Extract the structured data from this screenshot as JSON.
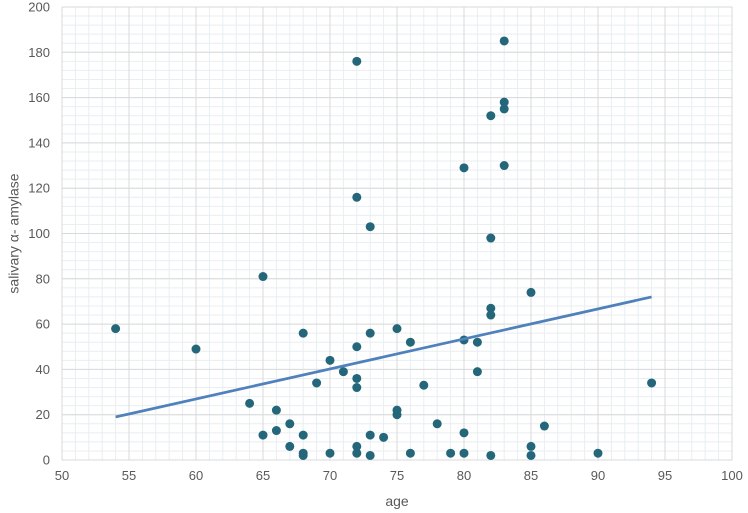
{
  "chart_data": {
    "type": "scatter",
    "title": "",
    "xlabel": "age",
    "ylabel": "salivary α- amylase",
    "xlim": [
      50,
      100
    ],
    "ylim": [
      0,
      200
    ],
    "x_major_step": 5,
    "y_major_step": 20,
    "x_ticks": [
      "50",
      "55",
      "60",
      "65",
      "70",
      "75",
      "80",
      "85",
      "90",
      "95",
      "100"
    ],
    "y_ticks": [
      "0",
      "20",
      "40",
      "60",
      "80",
      "100",
      "120",
      "140",
      "160",
      "180",
      "200"
    ],
    "grid": true,
    "minor_grid": true,
    "legend": "none",
    "colors": {
      "points": "#25677a",
      "trendline": "#4f81bd",
      "major_grid": "#d9d9d9",
      "minor_grid": "#e8eef1",
      "text": "#595959"
    },
    "points": [
      [
        54,
        58
      ],
      [
        60,
        49
      ],
      [
        64,
        25
      ],
      [
        65,
        81
      ],
      [
        65,
        11
      ],
      [
        66,
        22
      ],
      [
        66,
        13
      ],
      [
        67,
        16
      ],
      [
        67,
        6
      ],
      [
        68,
        56
      ],
      [
        68,
        11
      ],
      [
        68,
        3
      ],
      [
        68,
        2
      ],
      [
        69,
        34
      ],
      [
        70,
        44
      ],
      [
        70,
        3
      ],
      [
        71,
        39
      ],
      [
        72,
        176
      ],
      [
        72,
        116
      ],
      [
        72,
        50
      ],
      [
        72,
        36
      ],
      [
        72,
        32
      ],
      [
        72,
        6
      ],
      [
        72,
        3
      ],
      [
        73,
        103
      ],
      [
        73,
        56
      ],
      [
        73,
        11
      ],
      [
        73,
        2
      ],
      [
        74,
        10
      ],
      [
        75,
        58
      ],
      [
        75,
        22
      ],
      [
        75,
        20
      ],
      [
        76,
        52
      ],
      [
        76,
        3
      ],
      [
        77,
        33
      ],
      [
        78,
        16
      ],
      [
        79,
        3
      ],
      [
        80,
        129
      ],
      [
        80,
        53
      ],
      [
        80,
        12
      ],
      [
        80,
        3
      ],
      [
        81,
        52
      ],
      [
        81,
        39
      ],
      [
        82,
        152
      ],
      [
        82,
        98
      ],
      [
        82,
        67
      ],
      [
        82,
        64
      ],
      [
        82,
        2
      ],
      [
        83,
        185
      ],
      [
        83,
        158
      ],
      [
        83,
        155
      ],
      [
        83,
        130
      ],
      [
        85,
        74
      ],
      [
        85,
        6
      ],
      [
        85,
        2
      ],
      [
        86,
        15
      ],
      [
        90,
        3
      ],
      [
        94,
        34
      ]
    ],
    "trendline": {
      "type": "linear",
      "x": [
        54,
        94
      ],
      "y": [
        19,
        72
      ]
    }
  }
}
